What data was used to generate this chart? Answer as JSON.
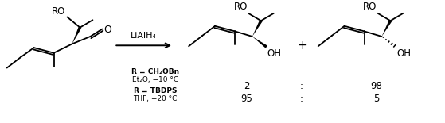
{
  "bg_color": "#ffffff",
  "reagent": "LiAlH₄",
  "condition1_bold": "R = CH₂OBn",
  "condition1_normal": "Et₂O, −10 °C",
  "condition2_bold": "R = TBDPS",
  "condition2_normal": "THF, −20 °C",
  "ratio1_left": "2",
  "ratio1_colon": ":",
  "ratio1_right": "98",
  "ratio2_left": "95",
  "ratio2_colon": ":",
  "ratio2_right": "5",
  "plus_sign": "+",
  "figsize": [
    5.59,
    1.55
  ],
  "dpi": 100
}
